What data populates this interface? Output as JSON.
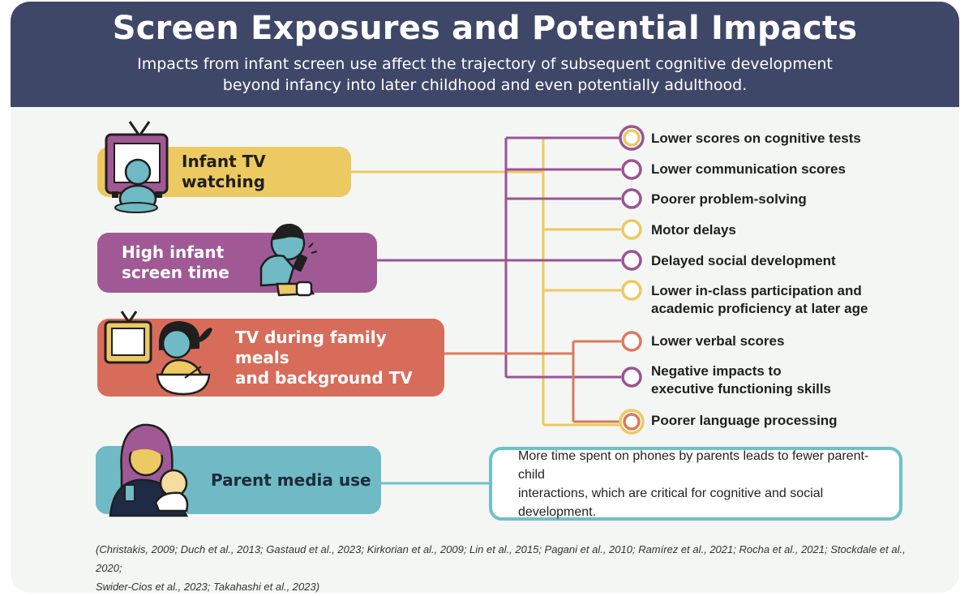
{
  "header": {
    "title": "Screen Exposures and Potential Impacts",
    "subtitle_line1": "Impacts from infant screen use affect the trajectory of subsequent cognitive development",
    "subtitle_line2": "beyond infancy into later childhood and even potentially adulthood."
  },
  "exposures": {
    "tv_watching": {
      "label": "Infant TV watching",
      "color": "#ecc961",
      "link_color": "#ecc961"
    },
    "screen_time": {
      "label_line1": "High infant",
      "label_line2": "screen time",
      "color": "#a05995",
      "link_color": "#9b5394"
    },
    "family_meals": {
      "label_line1": "TV during family meals",
      "label_line2": "and background TV",
      "color": "#d86c5b",
      "link_color": "#d97a5d"
    },
    "parent_media": {
      "label": "Parent media use",
      "color": "#6fbac4",
      "link_color": "#6ec1c9"
    }
  },
  "outcomes": [
    {
      "lines": [
        "Lower scores on cognitive tests"
      ],
      "ring": "#ecc961",
      "outer_ring": "#9b5394"
    },
    {
      "lines": [
        "Lower communication scores"
      ],
      "ring": "#9b5394"
    },
    {
      "lines": [
        "Poorer problem-solving"
      ],
      "ring": "#9b5394"
    },
    {
      "lines": [
        "Motor delays"
      ],
      "ring": "#ecc961"
    },
    {
      "lines": [
        "Delayed social development"
      ],
      "ring": "#9b5394"
    },
    {
      "lines": [
        "Lower in-class participation and",
        "academic proficiency at later age"
      ],
      "ring": "#ecc961"
    },
    {
      "lines": [
        "Lower verbal scores"
      ],
      "ring": "#d97a5d"
    },
    {
      "lines": [
        "Negative impacts to",
        "executive functioning skills"
      ],
      "ring": "#9b5394"
    },
    {
      "lines": [
        "Poorer language processing"
      ],
      "ring": "#d97a5d",
      "outer_ring": "#ecc961"
    }
  ],
  "parent_note": {
    "line1": "More time spent on phones by parents leads to fewer parent-child",
    "line2": "interactions, which are critical for cognitive and social development."
  },
  "references": {
    "line1": "(Christakis, 2009; Duch et al., 2013; Gastaud et al., 2023; Kirkorian et al., 2009; Lin et al., 2015; Pagani et al., 2010; Ramírez et al., 2021; Rocha et al., 2021; Stockdale et al., 2020;",
    "line2": "Swider-Cios et al., 2023; Takahashi et al., 2023)"
  }
}
